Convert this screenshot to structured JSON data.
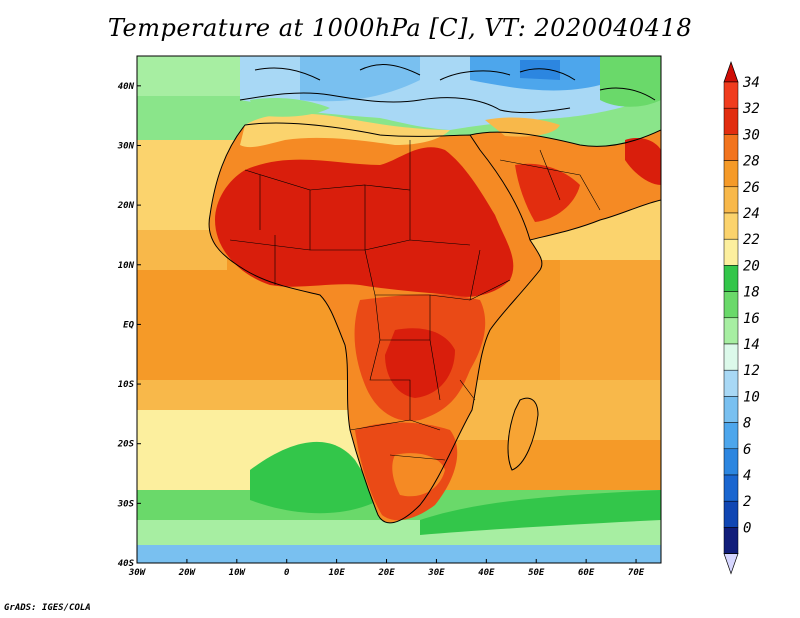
{
  "title": "Temperature at 1000hPa [C], VT: 2020040418",
  "credit": "GrADS: IGES/COLA",
  "map": {
    "lon_range": [
      -30,
      75
    ],
    "lat_range": [
      -40,
      45
    ],
    "lat_ticks": [
      {
        "lat": 40,
        "label": "40N"
      },
      {
        "lat": 30,
        "label": "30N"
      },
      {
        "lat": 20,
        "label": "20N"
      },
      {
        "lat": 10,
        "label": "10N"
      },
      {
        "lat": 0,
        "label": "EQ"
      },
      {
        "lat": -10,
        "label": "10S"
      },
      {
        "lat": -20,
        "label": "20S"
      },
      {
        "lat": -30,
        "label": "30S"
      },
      {
        "lat": -40,
        "label": "40S"
      }
    ],
    "lon_ticks": [
      {
        "lon": -30,
        "label": "30W"
      },
      {
        "lon": -20,
        "label": "20W"
      },
      {
        "lon": -10,
        "label": "10W"
      },
      {
        "lon": 0,
        "label": "0"
      },
      {
        "lon": 10,
        "label": "10E"
      },
      {
        "lon": 20,
        "label": "20E"
      },
      {
        "lon": 30,
        "label": "30E"
      },
      {
        "lon": 40,
        "label": "40E"
      },
      {
        "lon": 50,
        "label": "50E"
      },
      {
        "lon": 60,
        "label": "60E"
      },
      {
        "lon": 70,
        "label": "70E"
      }
    ]
  },
  "colorbar": {
    "levels": [
      {
        "label": "34",
        "color": "#f03c1e"
      },
      {
        "label": "32",
        "color": "#e22d0f"
      },
      {
        "label": "30",
        "color": "#f2741e"
      },
      {
        "label": "28",
        "color": "#f59a28"
      },
      {
        "label": "26",
        "color": "#f8b84a"
      },
      {
        "label": "24",
        "color": "#fbd36d"
      },
      {
        "label": "22",
        "color": "#fcef9e"
      },
      {
        "label": "20",
        "color": "#33c64a"
      },
      {
        "label": "18",
        "color": "#6ad96a"
      },
      {
        "label": "16",
        "color": "#a7eea2"
      },
      {
        "label": "14",
        "color": "#dcf9ea"
      },
      {
        "label": "12",
        "color": "#a8d8f5"
      },
      {
        "label": "10",
        "color": "#79c0f0"
      },
      {
        "label": "8",
        "color": "#4da6ec"
      },
      {
        "label": "6",
        "color": "#2c86e0"
      },
      {
        "label": "4",
        "color": "#1a66d0"
      },
      {
        "label": "2",
        "color": "#1046b3"
      },
      {
        "label": "0",
        "color": "#0b2a8f"
      }
    ],
    "top_color": "#cf0d06",
    "bottom_color": "#111d7a",
    "under_color": "#d6d6ff"
  },
  "colors": {
    "very_hot": "#d91e0c",
    "hot": "#ea4a16",
    "warm": "#f58a24",
    "mild": "#f7a434",
    "cool_ocean": "#fbd271",
    "pale": "#fdf0a6",
    "green": "#3fca50",
    "light_green": "#8ae58a",
    "pale_blue": "#cdeefa",
    "blue": "#7cc2ef",
    "deep_blue": "#3a8fe0"
  }
}
